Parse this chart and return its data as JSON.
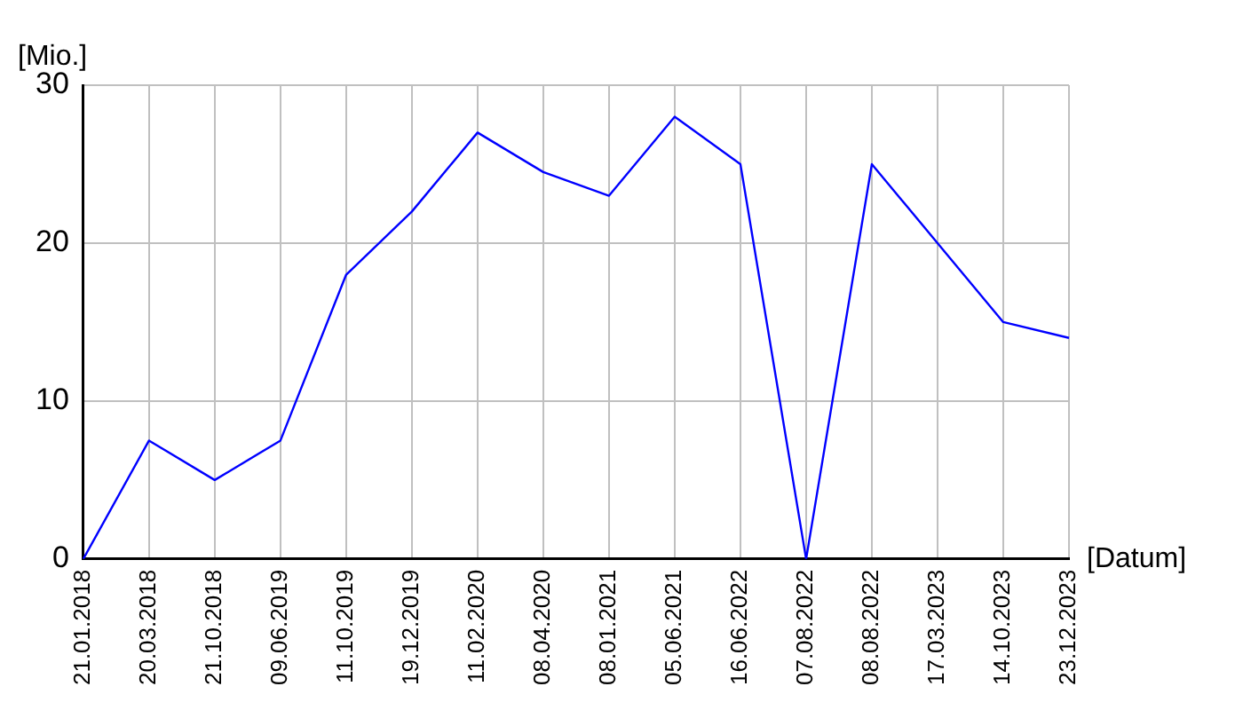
{
  "chart_data": {
    "type": "line",
    "xlabel": "[Datum]",
    "ylabel": "[Mio.]",
    "categories": [
      "21.01.2018",
      "20.03.2018",
      "21.10.2018",
      "09.06.2019",
      "11.10.2019",
      "19.12.2019",
      "11.02.2020",
      "08.04.2020",
      "08.01.2021",
      "05.06.2021",
      "16.06.2022",
      "07.08.2022",
      "08.08.2022",
      "17.03.2023",
      "14.10.2023",
      "23.12.2023"
    ],
    "series": [
      {
        "color": "#0000ff",
        "values": [
          0,
          7.5,
          5,
          7.5,
          18,
          22,
          27,
          24.5,
          23,
          28,
          25,
          0,
          25,
          20,
          15,
          14
        ]
      }
    ],
    "ylim": [
      0,
      30
    ],
    "yticks": [
      0,
      10,
      20,
      30
    ],
    "grid": true,
    "legend": false,
    "marker": "none",
    "line_style": "solid"
  }
}
